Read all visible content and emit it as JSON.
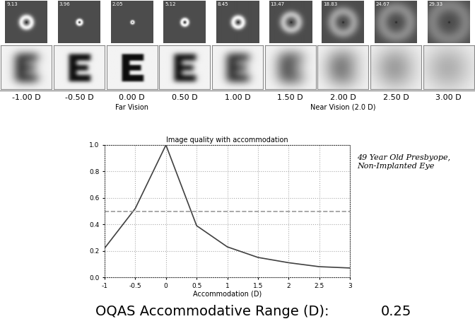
{
  "chart_data": {
    "type": "line",
    "title": "Image quality with accommodation",
    "x_label": "Accommodation (D)",
    "annotation": "49 Year Old Presbyope, Non-Implanted Eye",
    "x": [
      -1,
      -0.5,
      0,
      0.5,
      1,
      1.5,
      2,
      2.5,
      3
    ],
    "values": [
      0.22,
      0.52,
      1.0,
      0.39,
      0.23,
      0.15,
      0.11,
      0.08,
      0.07
    ],
    "color": "#404040",
    "line_style": "solid",
    "xlim": [
      -1,
      3
    ],
    "xticks": [
      -1,
      -0.5,
      0,
      0.5,
      1,
      1.5,
      2,
      2.5,
      3
    ],
    "ylim": [
      0.0,
      1.0
    ],
    "yticks": [
      0.0,
      0.2,
      0.4,
      0.6,
      0.8,
      1.0
    ],
    "grid": true,
    "reference_line": {
      "value": 0.5,
      "line_style": "dashed",
      "color": "#999999"
    }
  },
  "defocus_panel": {
    "letter": "E",
    "columns": [
      {
        "defocus": "-1.00 D",
        "psf_value": 9.13
      },
      {
        "defocus": "-0.50 D",
        "psf_value": 3.96
      },
      {
        "defocus": "0.00 D",
        "psf_value": 2.05,
        "note": "Far Vision"
      },
      {
        "defocus": "0.50 D",
        "psf_value": 5.12
      },
      {
        "defocus": "1.00 D",
        "psf_value": 8.45
      },
      {
        "defocus": "1.50 D",
        "psf_value": 13.47
      },
      {
        "defocus": "2.00 D",
        "psf_value": 18.83,
        "note": "Near Vision (2.0 D)"
      },
      {
        "defocus": "2.50 D",
        "psf_value": 24.67
      },
      {
        "defocus": "3.00 D",
        "psf_value": 29.33
      }
    ]
  },
  "footer": {
    "label": "OQAS Accommodative Range (D):",
    "value": 0.25
  }
}
